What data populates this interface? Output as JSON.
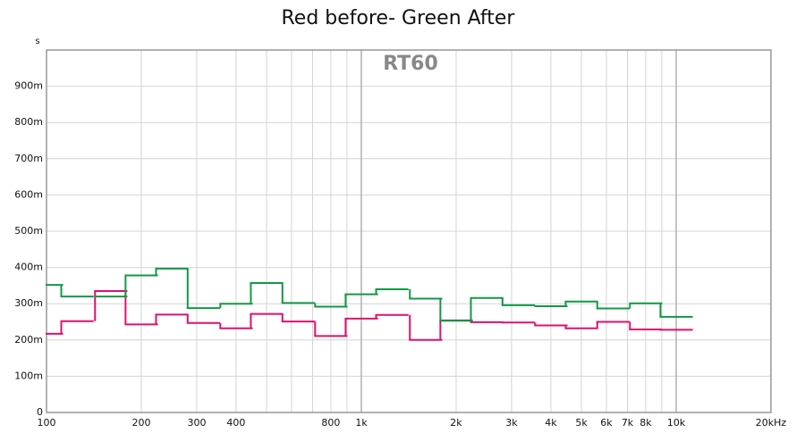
{
  "chart_data": {
    "type": "step",
    "title": "Red before- Green After",
    "watermark": "RT60",
    "y_unit": "s",
    "x": [
      100,
      125,
      160,
      200,
      250,
      315,
      400,
      500,
      630,
      800,
      1000,
      1250,
      1600,
      2000,
      2500,
      3150,
      4000,
      5000,
      6300,
      8000,
      10000
    ],
    "series": [
      {
        "color": "#e0106e",
        "values": [
          0.217,
          0.252,
          0.335,
          0.243,
          0.27,
          0.247,
          0.232,
          0.272,
          0.251,
          0.211,
          0.259,
          0.269,
          0.2,
          0.254,
          0.249,
          0.248,
          0.24,
          0.232,
          0.25,
          0.229,
          0.228
        ]
      },
      {
        "color": "#119944",
        "values": [
          0.352,
          0.32,
          0.32,
          0.378,
          0.397,
          0.288,
          0.3,
          0.357,
          0.302,
          0.292,
          0.326,
          0.34,
          0.314,
          0.253,
          0.316,
          0.296,
          0.293,
          0.306,
          0.287,
          0.301,
          0.264
        ]
      }
    ],
    "xscale": "log",
    "xlim": [
      100,
      20000
    ],
    "xticks": [
      100,
      200,
      300,
      400,
      {
        "value": 500,
        "label": null
      },
      {
        "value": 600,
        "label": null
      },
      {
        "value": 700,
        "label": null
      },
      800,
      {
        "value": 900,
        "label": null
      },
      {
        "value": 1000,
        "label": "1k"
      },
      {
        "value": 2000,
        "label": "2k"
      },
      {
        "value": 3000,
        "label": "3k"
      },
      {
        "value": 4000,
        "label": "4k"
      },
      {
        "value": 5000,
        "label": "5k"
      },
      {
        "value": 6000,
        "label": "6k"
      },
      {
        "value": 7000,
        "label": "7k"
      },
      {
        "value": 8000,
        "label": "8k"
      },
      {
        "value": 9000,
        "label": null
      },
      {
        "value": 10000,
        "label": "10k"
      },
      {
        "value": 20000,
        "label": "20kHz"
      }
    ],
    "ylim": [
      0,
      1
    ],
    "yticks": [
      0,
      {
        "value": 0.1,
        "label": "100m"
      },
      {
        "value": 0.2,
        "label": "200m"
      },
      {
        "value": 0.3,
        "label": "300m"
      },
      {
        "value": 0.4,
        "label": "400m"
      },
      {
        "value": 0.5,
        "label": "500m"
      },
      {
        "value": 0.6,
        "label": "600m"
      },
      {
        "value": 0.7,
        "label": "700m"
      },
      {
        "value": 0.8,
        "label": "800m"
      },
      {
        "value": 0.9,
        "label": "900m"
      }
    ],
    "grid": true
  }
}
